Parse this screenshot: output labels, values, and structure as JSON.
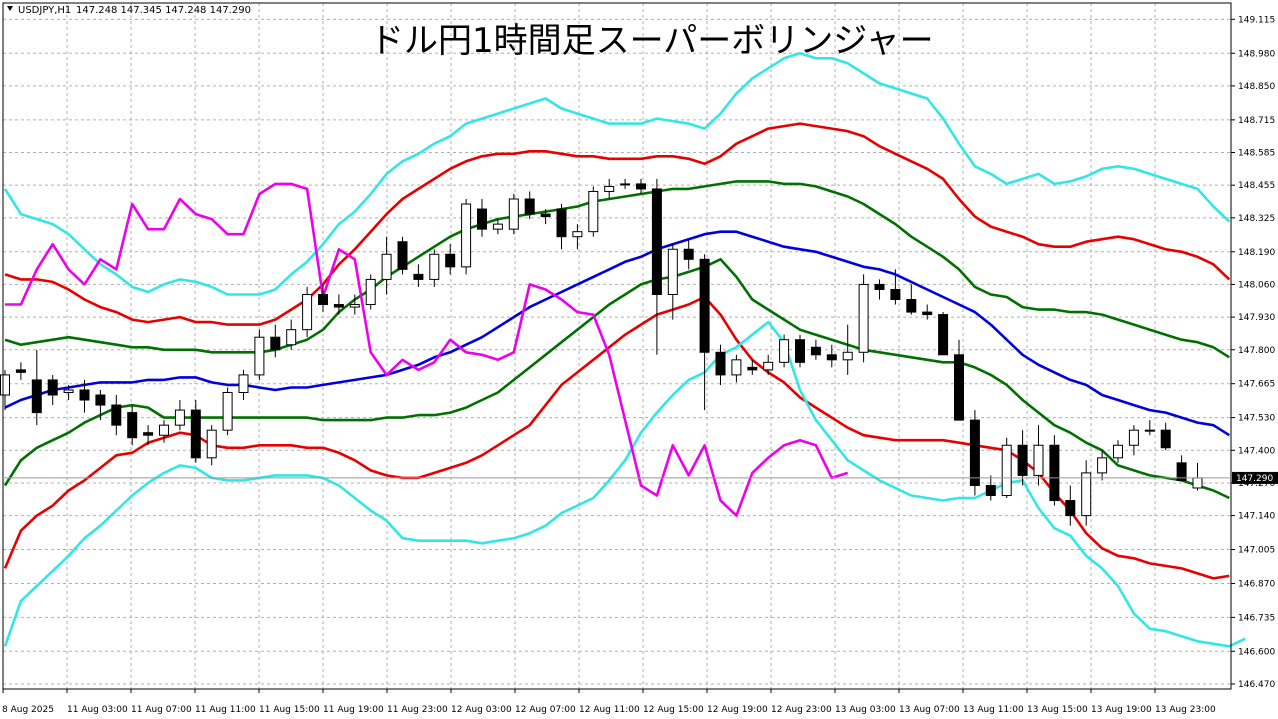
{
  "chart_header": {
    "symbol": "USDJPY,H1",
    "ohlc": "147.248 147.345 147.248 147.290"
  },
  "chart_data": {
    "type": "line",
    "title": "ドル円1時間足スーパーボリンジャー",
    "y_ticks": [
      "149.115",
      "148.980",
      "148.850",
      "148.715",
      "148.585",
      "148.455",
      "148.325",
      "148.190",
      "148.060",
      "147.930",
      "147.800",
      "147.665",
      "147.530",
      "147.400",
      "147.270",
      "147.140",
      "147.005",
      "146.870",
      "146.735",
      "146.600",
      "146.470"
    ],
    "x_ticks": [
      "8 Aug 2025",
      "11 Aug 03:00",
      "11 Aug 07:00",
      "11 Aug 11:00",
      "11 Aug 15:00",
      "11 Aug 19:00",
      "11 Aug 23:00",
      "12 Aug 03:00",
      "12 Aug 07:00",
      "12 Aug 11:00",
      "12 Aug 15:00",
      "12 Aug 19:00",
      "12 Aug 23:00",
      "13 Aug 03:00",
      "13 Aug 07:00",
      "13 Aug 11:00",
      "13 Aug 15:00",
      "13 Aug 19:00",
      "13 Aug 23:00"
    ],
    "ylim": [
      146.45,
      149.18
    ],
    "current_price": "147.290",
    "grid": true,
    "colors": {
      "plus3": "#33e6e6",
      "plus2": "#e60000",
      "plus1": "#007000",
      "mid": "#0000dd",
      "minus1": "#007000",
      "minus2": "#e60000",
      "minus3": "#33e6e6",
      "lag": "#ee00ee",
      "up_candle": "#ffffff",
      "down_candle": "#000000"
    },
    "candles_ohlc": [
      [
        147.62,
        147.72,
        147.56,
        147.7
      ],
      [
        147.72,
        147.75,
        147.68,
        147.71
      ],
      [
        147.68,
        147.8,
        147.5,
        147.55
      ],
      [
        147.68,
        147.7,
        147.58,
        147.62
      ],
      [
        147.63,
        147.66,
        147.6,
        147.64
      ],
      [
        147.64,
        147.68,
        147.55,
        147.6
      ],
      [
        147.62,
        147.64,
        147.52,
        147.58
      ],
      [
        147.58,
        147.62,
        147.46,
        147.5
      ],
      [
        147.55,
        147.58,
        147.42,
        147.45
      ],
      [
        147.47,
        147.5,
        147.42,
        147.46
      ],
      [
        147.46,
        147.52,
        147.43,
        147.5
      ],
      [
        147.5,
        147.6,
        147.48,
        147.56
      ],
      [
        147.56,
        147.6,
        147.35,
        147.37
      ],
      [
        147.37,
        147.5,
        147.34,
        147.48
      ],
      [
        147.48,
        147.65,
        147.46,
        147.63
      ],
      [
        147.63,
        147.72,
        147.6,
        147.7
      ],
      [
        147.7,
        147.88,
        147.68,
        147.85
      ],
      [
        147.85,
        147.9,
        147.77,
        147.8
      ],
      [
        147.82,
        147.92,
        147.8,
        147.88
      ],
      [
        147.88,
        148.05,
        147.85,
        148.02
      ],
      [
        148.02,
        148.06,
        147.95,
        147.98
      ],
      [
        147.98,
        148.02,
        147.94,
        147.97
      ],
      [
        147.97,
        148.02,
        147.94,
        147.98
      ],
      [
        147.98,
        148.1,
        147.96,
        148.08
      ],
      [
        148.08,
        148.25,
        148.02,
        148.18
      ],
      [
        148.23,
        148.25,
        148.1,
        148.12
      ],
      [
        148.1,
        148.14,
        148.05,
        148.08
      ],
      [
        148.08,
        148.2,
        148.05,
        148.18
      ],
      [
        148.18,
        148.22,
        148.1,
        148.13
      ],
      [
        148.13,
        148.4,
        148.1,
        148.38
      ],
      [
        148.36,
        148.4,
        148.25,
        148.28
      ],
      [
        148.28,
        148.32,
        148.26,
        148.3
      ],
      [
        148.28,
        148.42,
        148.26,
        148.4
      ],
      [
        148.4,
        148.43,
        148.32,
        148.34
      ],
      [
        148.34,
        148.36,
        148.3,
        148.33
      ],
      [
        148.36,
        148.38,
        148.2,
        148.25
      ],
      [
        148.25,
        148.3,
        148.2,
        148.27
      ],
      [
        148.27,
        148.45,
        148.25,
        148.43
      ],
      [
        148.43,
        148.48,
        148.4,
        148.45
      ],
      [
        148.46,
        148.48,
        148.44,
        148.46
      ],
      [
        148.46,
        148.48,
        148.42,
        148.44
      ],
      [
        148.44,
        148.48,
        147.78,
        148.02
      ],
      [
        148.02,
        148.22,
        147.92,
        148.2
      ],
      [
        148.2,
        148.24,
        148.12,
        148.16
      ],
      [
        148.16,
        148.18,
        147.56,
        147.79
      ],
      [
        147.79,
        147.82,
        147.66,
        147.7
      ],
      [
        147.7,
        147.78,
        147.67,
        147.76
      ],
      [
        147.73,
        147.76,
        147.7,
        147.72
      ],
      [
        147.72,
        147.78,
        147.7,
        147.75
      ],
      [
        147.75,
        147.86,
        147.73,
        147.84
      ],
      [
        147.84,
        147.86,
        147.73,
        147.75
      ],
      [
        147.81,
        147.84,
        147.76,
        147.78
      ],
      [
        147.78,
        147.82,
        147.73,
        147.76
      ],
      [
        147.76,
        147.9,
        147.7,
        147.79
      ],
      [
        147.79,
        148.1,
        147.75,
        148.06
      ],
      [
        148.06,
        148.08,
        148.0,
        148.04
      ],
      [
        148.04,
        148.12,
        147.98,
        148.0
      ],
      [
        148.0,
        148.06,
        147.94,
        147.95
      ],
      [
        147.95,
        147.98,
        147.92,
        147.94
      ],
      [
        147.94,
        147.95,
        147.78,
        147.78
      ],
      [
        147.78,
        147.84,
        147.52,
        147.52
      ],
      [
        147.52,
        147.56,
        147.22,
        147.26
      ],
      [
        147.26,
        147.3,
        147.2,
        147.22
      ],
      [
        147.22,
        147.45,
        147.21,
        147.42
      ],
      [
        147.42,
        147.48,
        147.26,
        147.3
      ],
      [
        147.3,
        147.5,
        147.26,
        147.42
      ],
      [
        147.42,
        147.46,
        147.18,
        147.2
      ],
      [
        147.2,
        147.26,
        147.1,
        147.14
      ],
      [
        147.14,
        147.36,
        147.1,
        147.31
      ],
      [
        147.31,
        147.4,
        147.28,
        147.37
      ],
      [
        147.37,
        147.44,
        147.35,
        147.42
      ],
      [
        147.42,
        147.5,
        147.38,
        147.48
      ],
      [
        147.48,
        147.52,
        147.46,
        147.48
      ],
      [
        147.48,
        147.51,
        147.4,
        147.41
      ],
      [
        147.35,
        147.38,
        147.28,
        147.28
      ],
      [
        147.25,
        147.35,
        147.24,
        147.29
      ]
    ],
    "series": [
      {
        "values": [
          148.44,
          148.34,
          148.32,
          148.3,
          148.26,
          148.2,
          148.14,
          148.1,
          148.05,
          148.03,
          148.06,
          148.08,
          148.07,
          148.05,
          148.02,
          148.02,
          148.02,
          148.04,
          148.1,
          148.15,
          148.22,
          148.3,
          148.35,
          148.42,
          148.5,
          148.55,
          148.58,
          148.62,
          148.65,
          148.7,
          148.72,
          148.74,
          148.76,
          148.78,
          148.8,
          148.76,
          148.74,
          148.72,
          148.7,
          148.7,
          148.7,
          148.72,
          148.71,
          148.7,
          148.68,
          148.74,
          148.82,
          148.88,
          148.92,
          148.96,
          148.98,
          148.96,
          148.96,
          148.94,
          148.9,
          148.86,
          148.84,
          148.82,
          148.8,
          148.72,
          148.62,
          148.53,
          148.5,
          148.46,
          148.48,
          148.5,
          148.46,
          148.47,
          148.49,
          148.52,
          148.53,
          148.52,
          148.5,
          148.48,
          148.46,
          148.44,
          148.37,
          148.31
        ]
      },
      {
        "values": [
          148.1,
          148.08,
          148.08,
          148.07,
          148.04,
          148.0,
          147.97,
          147.95,
          147.92,
          147.91,
          147.92,
          147.93,
          147.91,
          147.91,
          147.9,
          147.9,
          147.9,
          147.92,
          147.96,
          148.0,
          148.06,
          148.14,
          148.2,
          148.27,
          148.34,
          148.4,
          148.44,
          148.48,
          148.52,
          148.55,
          148.57,
          148.58,
          148.58,
          148.59,
          148.59,
          148.58,
          148.57,
          148.57,
          148.56,
          148.56,
          148.56,
          148.57,
          148.57,
          148.56,
          148.54,
          148.57,
          148.62,
          148.65,
          148.68,
          148.69,
          148.7,
          148.69,
          148.68,
          148.67,
          148.65,
          148.61,
          148.58,
          148.55,
          148.52,
          148.48,
          148.4,
          148.33,
          148.29,
          148.27,
          148.25,
          148.22,
          148.21,
          148.21,
          148.23,
          148.24,
          148.25,
          148.24,
          148.22,
          148.2,
          148.19,
          148.17,
          148.14,
          148.08
        ]
      },
      {
        "values": [
          147.84,
          147.82,
          147.83,
          147.84,
          147.85,
          147.84,
          147.83,
          147.82,
          147.81,
          147.81,
          147.8,
          147.8,
          147.8,
          147.79,
          147.79,
          147.79,
          147.79,
          147.8,
          147.82,
          147.84,
          147.88,
          147.95,
          148.0,
          148.04,
          148.09,
          148.13,
          148.17,
          148.21,
          148.25,
          148.28,
          148.3,
          148.32,
          148.33,
          148.34,
          148.35,
          148.36,
          148.37,
          148.39,
          148.4,
          148.41,
          148.42,
          148.43,
          148.44,
          148.44,
          148.45,
          148.46,
          148.47,
          148.47,
          148.47,
          148.46,
          148.46,
          148.45,
          148.43,
          148.41,
          148.38,
          148.34,
          148.3,
          148.25,
          148.21,
          148.17,
          148.12,
          148.05,
          148.02,
          148.01,
          147.97,
          147.96,
          147.96,
          147.95,
          147.95,
          147.94,
          147.92,
          147.9,
          147.88,
          147.86,
          147.84,
          147.83,
          147.81,
          147.77
        ]
      },
      {
        "values": [
          147.57,
          147.6,
          147.62,
          147.64,
          147.65,
          147.66,
          147.67,
          147.67,
          147.67,
          147.68,
          147.68,
          147.69,
          147.69,
          147.67,
          147.66,
          147.66,
          147.65,
          147.64,
          147.65,
          147.65,
          147.66,
          147.67,
          147.68,
          147.69,
          147.7,
          147.72,
          147.74,
          147.77,
          147.79,
          147.82,
          147.85,
          147.89,
          147.93,
          147.97,
          148.0,
          148.03,
          148.06,
          148.09,
          148.12,
          148.15,
          148.17,
          148.2,
          148.22,
          148.24,
          148.26,
          148.27,
          148.27,
          148.25,
          148.23,
          148.21,
          148.2,
          148.19,
          148.17,
          148.15,
          148.13,
          148.12,
          148.1,
          148.07,
          148.04,
          148.01,
          147.98,
          147.95,
          147.9,
          147.84,
          147.78,
          147.74,
          147.71,
          147.68,
          147.66,
          147.62,
          147.6,
          147.58,
          147.56,
          147.55,
          147.53,
          147.51,
          147.5,
          147.46
        ]
      },
      {
        "values": [
          147.26,
          147.36,
          147.41,
          147.44,
          147.47,
          147.51,
          147.54,
          147.57,
          147.58,
          147.57,
          147.53,
          147.53,
          147.53,
          147.53,
          147.53,
          147.53,
          147.53,
          147.53,
          147.53,
          147.53,
          147.52,
          147.52,
          147.52,
          147.52,
          147.53,
          147.53,
          147.54,
          147.54,
          147.55,
          147.57,
          147.6,
          147.63,
          147.68,
          147.73,
          147.78,
          147.83,
          147.88,
          147.93,
          147.98,
          148.02,
          148.06,
          148.08,
          148.09,
          148.11,
          148.13,
          148.16,
          148.09,
          148.0,
          147.96,
          147.92,
          147.88,
          147.86,
          147.84,
          147.82,
          147.8,
          147.79,
          147.78,
          147.77,
          147.76,
          147.75,
          147.75,
          147.73,
          147.7,
          147.66,
          147.6,
          147.55,
          147.5,
          147.47,
          147.43,
          147.4,
          147.34,
          147.32,
          147.3,
          147.29,
          147.28,
          147.26,
          147.24,
          147.21
        ]
      },
      {
        "values": [
          146.93,
          147.08,
          147.14,
          147.18,
          147.24,
          147.28,
          147.33,
          147.38,
          147.39,
          147.43,
          147.45,
          147.47,
          147.46,
          147.42,
          147.41,
          147.41,
          147.42,
          147.42,
          147.42,
          147.41,
          147.41,
          147.39,
          147.36,
          147.32,
          147.3,
          147.29,
          147.29,
          147.31,
          147.33,
          147.35,
          147.38,
          147.42,
          147.46,
          147.5,
          147.58,
          147.66,
          147.71,
          147.76,
          147.81,
          147.86,
          147.9,
          147.94,
          147.96,
          147.98,
          148.01,
          147.94,
          147.84,
          147.76,
          147.71,
          147.67,
          147.61,
          147.57,
          147.53,
          147.49,
          147.46,
          147.45,
          147.44,
          147.44,
          147.44,
          147.44,
          147.43,
          147.42,
          147.41,
          147.4,
          147.36,
          147.31,
          147.23,
          147.16,
          147.07,
          147.01,
          146.98,
          146.97,
          146.95,
          146.94,
          146.93,
          146.91,
          146.89,
          146.9
        ]
      },
      {
        "values": [
          146.62,
          146.8,
          146.86,
          146.92,
          146.98,
          147.05,
          147.1,
          147.16,
          147.22,
          147.27,
          147.31,
          147.34,
          147.33,
          147.29,
          147.28,
          147.28,
          147.29,
          147.3,
          147.3,
          147.3,
          147.29,
          147.26,
          147.21,
          147.16,
          147.12,
          147.05,
          147.04,
          147.04,
          147.04,
          147.04,
          147.03,
          147.04,
          147.05,
          147.07,
          147.1,
          147.15,
          147.18,
          147.21,
          147.28,
          147.36,
          147.47,
          147.55,
          147.62,
          147.68,
          147.71,
          147.78,
          147.81,
          147.86,
          147.91,
          147.83,
          147.64,
          147.52,
          147.44,
          147.36,
          147.32,
          147.28,
          147.25,
          147.22,
          147.21,
          147.2,
          147.21,
          147.21,
          147.24,
          147.27,
          147.28,
          147.17,
          147.09,
          147.06,
          146.98,
          146.93,
          146.86,
          146.75,
          146.69,
          146.68,
          146.66,
          146.64,
          146.63,
          146.62,
          146.65
        ]
      },
      {
        "values": [
          147.98,
          147.98,
          148.12,
          148.22,
          148.12,
          148.06,
          148.16,
          148.12,
          148.38,
          148.28,
          148.28,
          148.4,
          148.34,
          148.32,
          148.26,
          148.26,
          148.42,
          148.46,
          148.46,
          148.44,
          148.01,
          148.2,
          148.16,
          147.79,
          147.7,
          147.76,
          147.72,
          147.75,
          147.84,
          147.79,
          147.78,
          147.76,
          147.79,
          148.06,
          148.04,
          148.0,
          147.95,
          147.94,
          147.78,
          147.52,
          147.26,
          147.22,
          147.42,
          147.3,
          147.42,
          147.2,
          147.14,
          147.31,
          147.37,
          147.42,
          147.44,
          147.42,
          147.29,
          147.31
        ]
      }
    ]
  }
}
